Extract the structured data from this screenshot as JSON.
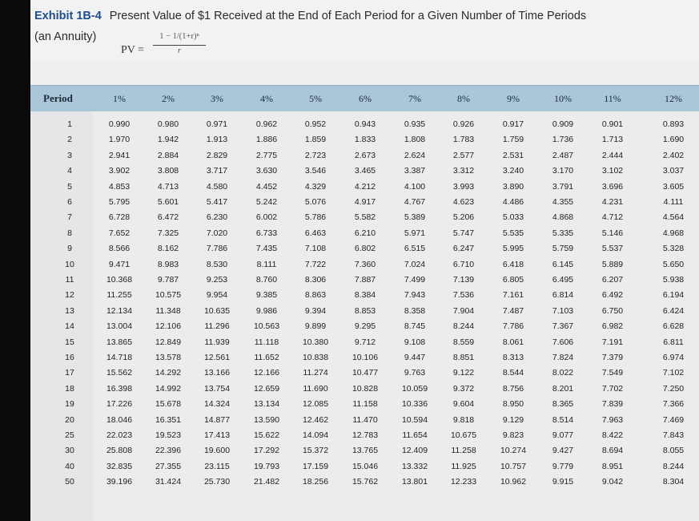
{
  "header": {
    "exhibit_label": "Exhibit 1B-4",
    "title": "Present Value of $1 Received at the End of Each Period for a Given Number of Time Periods",
    "subtitle": "(an Annuity)",
    "formula": {
      "lhs": "PV =",
      "numerator": "1 − 1/(1+r)ⁿ",
      "denominator": "r"
    }
  },
  "table": {
    "period_header": "Period",
    "rate_headers": [
      "1%",
      "2%",
      "3%",
      "4%",
      "5%",
      "6%",
      "7%",
      "8%",
      "9%",
      "10%",
      "11%",
      "12%"
    ],
    "rows": [
      {
        "period": "1",
        "values": [
          "0.990",
          "0.980",
          "0.971",
          "0.962",
          "0.952",
          "0.943",
          "0.935",
          "0.926",
          "0.917",
          "0.909",
          "0.901",
          "0.893"
        ]
      },
      {
        "period": "2",
        "values": [
          "1.970",
          "1.942",
          "1.913",
          "1.886",
          "1.859",
          "1.833",
          "1.808",
          "1.783",
          "1.759",
          "1.736",
          "1.713",
          "1.690"
        ]
      },
      {
        "period": "3",
        "values": [
          "2.941",
          "2.884",
          "2.829",
          "2.775",
          "2.723",
          "2.673",
          "2.624",
          "2.577",
          "2.531",
          "2.487",
          "2.444",
          "2.402"
        ]
      },
      {
        "period": "4",
        "values": [
          "3.902",
          "3.808",
          "3.717",
          "3.630",
          "3.546",
          "3.465",
          "3.387",
          "3.312",
          "3.240",
          "3.170",
          "3.102",
          "3.037"
        ]
      },
      {
        "period": "5",
        "values": [
          "4.853",
          "4.713",
          "4.580",
          "4.452",
          "4.329",
          "4.212",
          "4.100",
          "3.993",
          "3.890",
          "3.791",
          "3.696",
          "3.605"
        ]
      },
      {
        "period": "6",
        "values": [
          "5.795",
          "5.601",
          "5.417",
          "5.242",
          "5.076",
          "4.917",
          "4.767",
          "4.623",
          "4.486",
          "4.355",
          "4.231",
          "4.111"
        ]
      },
      {
        "period": "7",
        "values": [
          "6.728",
          "6.472",
          "6.230",
          "6.002",
          "5.786",
          "5.582",
          "5.389",
          "5.206",
          "5.033",
          "4.868",
          "4.712",
          "4.564"
        ]
      },
      {
        "period": "8",
        "values": [
          "7.652",
          "7.325",
          "7.020",
          "6.733",
          "6.463",
          "6.210",
          "5.971",
          "5.747",
          "5.535",
          "5.335",
          "5.146",
          "4.968"
        ]
      },
      {
        "period": "9",
        "values": [
          "8.566",
          "8.162",
          "7.786",
          "7.435",
          "7.108",
          "6.802",
          "6.515",
          "6.247",
          "5.995",
          "5.759",
          "5.537",
          "5.328"
        ]
      },
      {
        "period": "10",
        "values": [
          "9.471",
          "8.983",
          "8.530",
          "8.111",
          "7.722",
          "7.360",
          "7.024",
          "6.710",
          "6.418",
          "6.145",
          "5.889",
          "5.650"
        ]
      },
      {
        "period": "11",
        "values": [
          "10.368",
          "9.787",
          "9.253",
          "8.760",
          "8.306",
          "7.887",
          "7.499",
          "7.139",
          "6.805",
          "6.495",
          "6.207",
          "5.938"
        ]
      },
      {
        "period": "12",
        "values": [
          "11.255",
          "10.575",
          "9.954",
          "9.385",
          "8.863",
          "8.384",
          "7.943",
          "7.536",
          "7.161",
          "6.814",
          "6.492",
          "6.194"
        ]
      },
      {
        "period": "13",
        "values": [
          "12.134",
          "11.348",
          "10.635",
          "9.986",
          "9.394",
          "8.853",
          "8.358",
          "7.904",
          "7.487",
          "7.103",
          "6.750",
          "6.424"
        ]
      },
      {
        "period": "14",
        "values": [
          "13.004",
          "12.106",
          "11.296",
          "10.563",
          "9.899",
          "9.295",
          "8.745",
          "8.244",
          "7.786",
          "7.367",
          "6.982",
          "6.628"
        ]
      },
      {
        "period": "15",
        "values": [
          "13.865",
          "12.849",
          "11.939",
          "11.118",
          "10.380",
          "9.712",
          "9.108",
          "8.559",
          "8.061",
          "7.606",
          "7.191",
          "6.811"
        ]
      },
      {
        "period": "16",
        "values": [
          "14.718",
          "13.578",
          "12.561",
          "11.652",
          "10.838",
          "10.106",
          "9.447",
          "8.851",
          "8.313",
          "7.824",
          "7.379",
          "6.974"
        ]
      },
      {
        "period": "17",
        "values": [
          "15.562",
          "14.292",
          "13.166",
          "12.166",
          "11.274",
          "10.477",
          "9.763",
          "9.122",
          "8.544",
          "8.022",
          "7.549",
          "7.102"
        ]
      },
      {
        "period": "18",
        "values": [
          "16.398",
          "14.992",
          "13.754",
          "12.659",
          "11.690",
          "10.828",
          "10.059",
          "9.372",
          "8.756",
          "8.201",
          "7.702",
          "7.250"
        ]
      },
      {
        "period": "19",
        "values": [
          "17.226",
          "15.678",
          "14.324",
          "13.134",
          "12.085",
          "11.158",
          "10.336",
          "9.604",
          "8.950",
          "8.365",
          "7.839",
          "7.366"
        ]
      },
      {
        "period": "20",
        "values": [
          "18.046",
          "16.351",
          "14.877",
          "13.590",
          "12.462",
          "11.470",
          "10.594",
          "9.818",
          "9.129",
          "8.514",
          "7.963",
          "7.469"
        ]
      },
      {
        "period": "25",
        "values": [
          "22.023",
          "19.523",
          "17.413",
          "15.622",
          "14.094",
          "12.783",
          "11.654",
          "10.675",
          "9.823",
          "9.077",
          "8.422",
          "7.843"
        ]
      },
      {
        "period": "30",
        "values": [
          "25.808",
          "22.396",
          "19.600",
          "17.292",
          "15.372",
          "13.765",
          "12.409",
          "11.258",
          "10.274",
          "9.427",
          "8.694",
          "8.055"
        ]
      },
      {
        "period": "40",
        "values": [
          "32.835",
          "27.355",
          "23.115",
          "19.793",
          "17.159",
          "15.046",
          "13.332",
          "11.925",
          "10.757",
          "9.779",
          "8.951",
          "8.244"
        ]
      },
      {
        "period": "50",
        "values": [
          "39.196",
          "31.424",
          "25.730",
          "21.482",
          "18.256",
          "15.762",
          "13.801",
          "12.233",
          "10.962",
          "9.915",
          "9.042",
          "8.304"
        ]
      }
    ]
  }
}
